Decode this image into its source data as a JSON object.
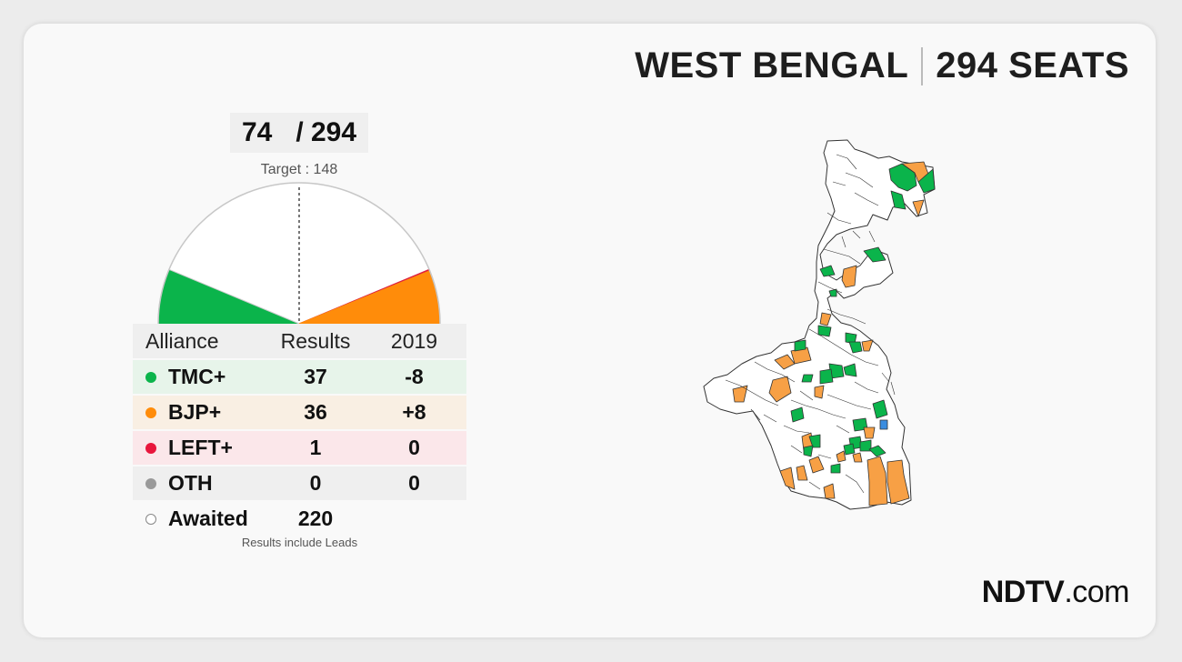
{
  "header": {
    "state": "WEST BENGAL",
    "seats": "294 SEATS"
  },
  "tally": {
    "won": "74",
    "total": "/ 294",
    "target": "Target : 148"
  },
  "gauge": {
    "total": 294,
    "segments": [
      {
        "party": "TMC+",
        "seats": 37,
        "color": "#0bb44b"
      },
      {
        "party": "Awaited",
        "seats": 220,
        "color": "#ffffff"
      },
      {
        "party": "LEFT+",
        "seats": 1,
        "color": "#e0203f"
      },
      {
        "party": "BJP+",
        "seats": 36,
        "color": "#ff8c0a"
      }
    ]
  },
  "table": {
    "headers": [
      "Alliance",
      "Results",
      "2019"
    ],
    "rows": [
      {
        "name": "TMC+",
        "results": "37",
        "change": "-8",
        "color": "#0bb44b"
      },
      {
        "name": "BJP+",
        "results": "36",
        "change": "+8",
        "color": "#ff8c0a"
      },
      {
        "name": "LEFT+",
        "results": "1",
        "change": "0",
        "color": "#e8163c"
      },
      {
        "name": "OTH",
        "results": "0",
        "change": "0",
        "color": "#999999"
      },
      {
        "name": "Awaited",
        "results": "220",
        "change": "",
        "color": "#ffffff"
      }
    ],
    "note": "Results include Leads"
  },
  "map": {
    "colors": {
      "tmc": "#0bb44b",
      "bjp": "#f7a045",
      "left": "#3a8de0",
      "awaited": "#ffffff"
    }
  },
  "logo": {
    "brand": "NDTV",
    "suffix": ".com",
    "dot_color": "#e0152c"
  }
}
